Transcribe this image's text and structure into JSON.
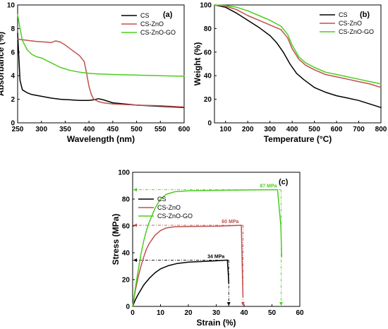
{
  "chart_data": [
    {
      "type": "line",
      "panel_label": "(a)",
      "xlabel": "Wavelength (nm)",
      "ylabel": "Absorbance (%)",
      "xlim": [
        250,
        600
      ],
      "ylim": [
        0,
        10
      ],
      "xticks": [
        250,
        300,
        350,
        400,
        450,
        500,
        550,
        600
      ],
      "yticks": [
        0,
        2,
        4,
        6,
        8,
        10
      ],
      "legend_position": "top-right",
      "series": [
        {
          "name": "CS",
          "color": "#000000",
          "x": [
            250,
            255,
            260,
            270,
            280,
            300,
            320,
            340,
            360,
            380,
            400,
            410,
            420,
            430,
            450,
            500,
            550,
            600
          ],
          "y": [
            7.6,
            3.6,
            2.8,
            2.55,
            2.4,
            2.25,
            2.1,
            2.0,
            1.95,
            1.9,
            1.9,
            1.95,
            2.05,
            1.95,
            1.7,
            1.5,
            1.4,
            1.3
          ]
        },
        {
          "name": "CS-ZnO",
          "color": "#c0504d",
          "x": [
            250,
            270,
            290,
            310,
            320,
            330,
            340,
            350,
            360,
            370,
            380,
            390,
            395,
            400,
            405,
            410,
            420,
            430,
            450,
            500,
            550,
            600
          ],
          "y": [
            7.1,
            7.0,
            6.9,
            6.85,
            6.8,
            6.95,
            6.85,
            6.6,
            6.3,
            6.0,
            5.7,
            5.2,
            4.2,
            3.1,
            2.4,
            2.0,
            1.8,
            1.7,
            1.6,
            1.5,
            1.45,
            1.35
          ]
        },
        {
          "name": "CS-ZnO-GO",
          "color": "#4ccd1f",
          "x": [
            250,
            255,
            260,
            270,
            280,
            290,
            300,
            320,
            340,
            360,
            380,
            400,
            420,
            450,
            500,
            550,
            600
          ],
          "y": [
            9.2,
            8.0,
            7.0,
            6.2,
            5.8,
            5.6,
            5.5,
            5.1,
            4.7,
            4.45,
            4.3,
            4.2,
            4.15,
            4.1,
            4.05,
            4.0,
            3.95
          ]
        }
      ]
    },
    {
      "type": "line",
      "panel_label": "(b)",
      "xlabel": "Temperature (°C)",
      "ylabel": "Weight (%)",
      "xlim": [
        50,
        800
      ],
      "ylim": [
        0,
        100
      ],
      "xticks": [
        100,
        200,
        300,
        400,
        500,
        600,
        700,
        800
      ],
      "yticks": [
        0,
        20,
        40,
        60,
        80,
        100
      ],
      "legend_position": "top-right",
      "series": [
        {
          "name": "CS",
          "color": "#000000",
          "x": [
            50,
            100,
            150,
            200,
            250,
            300,
            330,
            360,
            390,
            420,
            450,
            500,
            550,
            600,
            650,
            700,
            750,
            800
          ],
          "y": [
            100,
            98,
            93,
            87,
            81,
            74,
            68,
            60,
            50,
            42,
            37,
            30,
            26,
            23,
            21,
            19,
            16,
            13
          ]
        },
        {
          "name": "CS-ZnO",
          "color": "#c0504d",
          "x": [
            50,
            100,
            150,
            200,
            250,
            300,
            350,
            380,
            400,
            430,
            460,
            500,
            550,
            600,
            650,
            700,
            750,
            800
          ],
          "y": [
            100,
            99,
            96,
            91,
            87,
            83,
            79,
            72,
            63,
            54,
            49,
            45,
            41,
            39,
            37,
            35,
            33,
            30
          ]
        },
        {
          "name": "CS-ZnO-GO",
          "color": "#4ccd1f",
          "x": [
            50,
            100,
            150,
            200,
            250,
            300,
            350,
            380,
            400,
            430,
            460,
            500,
            550,
            600,
            650,
            700,
            750,
            800
          ],
          "y": [
            100,
            99.5,
            98,
            95,
            91,
            87,
            82,
            75,
            66,
            56,
            51,
            47,
            43,
            41,
            39,
            37,
            35,
            33
          ]
        }
      ]
    },
    {
      "type": "line",
      "panel_label": "(c)",
      "xlabel": "Strain (%)",
      "ylabel": "Stress (MPa)",
      "xlim": [
        0,
        60
      ],
      "ylim": [
        0,
        100
      ],
      "xticks": [
        0,
        10,
        20,
        30,
        40,
        50,
        60
      ],
      "yticks": [
        0,
        20,
        40,
        60,
        80,
        100
      ],
      "legend_position": "top-left",
      "series": [
        {
          "name": "CS",
          "color": "#000000",
          "x": [
            0,
            1,
            2,
            4,
            6,
            8,
            10,
            13,
            16,
            20,
            25,
            30,
            34,
            34.3,
            34.5
          ],
          "y": [
            0,
            5,
            9,
            16,
            21,
            25,
            28,
            30.5,
            32,
            33,
            33.5,
            34,
            34.5,
            25,
            17
          ]
        },
        {
          "name": "CS-ZnO",
          "color": "#c0504d",
          "x": [
            0,
            1,
            2,
            3,
            4,
            5,
            6,
            8,
            10,
            12,
            15,
            20,
            30,
            39,
            39.3,
            39.6
          ],
          "y": [
            0,
            12,
            22,
            30,
            37,
            43,
            47,
            53,
            56.5,
            58.5,
            59.3,
            59.6,
            59.8,
            60.5,
            35,
            7
          ]
        },
        {
          "name": "CS-ZnO-GO",
          "color": "#4ccd1f",
          "x": [
            0,
            1,
            2,
            3,
            4,
            5,
            6,
            8,
            10,
            12,
            15,
            20,
            30,
            40,
            52,
            53.2,
            53.5
          ],
          "y": [
            0,
            14,
            27,
            39,
            49,
            57,
            63,
            73,
            80,
            83.5,
            85.5,
            86.2,
            86.5,
            86.8,
            87,
            60,
            37
          ]
        }
      ],
      "annotations": [
        {
          "text": "87 MPa",
          "color": "#4ccd1f",
          "x": 53.3,
          "y": 87
        },
        {
          "text": "60 MPa",
          "color": "#c0504d",
          "x": 39.6,
          "y": 60.5
        },
        {
          "text": "34 MPa",
          "color": "#000000",
          "x": 34.5,
          "y": 34.5
        }
      ]
    }
  ]
}
